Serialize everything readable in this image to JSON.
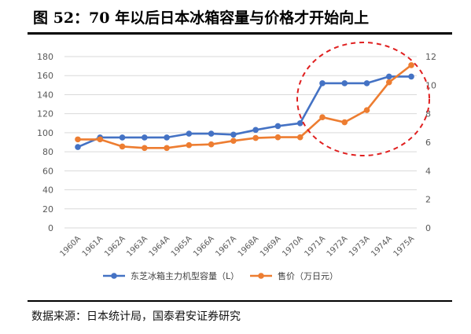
{
  "page": {
    "title": "图 52：70 年以后日本冰箱容量与价格才开始向上",
    "source": "数据来源：日本统计局，国泰君安证券研究"
  },
  "chart_data": {
    "type": "line",
    "categories": [
      "1960A",
      "1961A",
      "1962A",
      "1963A",
      "1964A",
      "1965A",
      "1966A",
      "1967A",
      "1968A",
      "1969A",
      "1970A",
      "1971A",
      "1972A",
      "1973A",
      "1974A",
      "1975A"
    ],
    "y_left": {
      "ylim": [
        0,
        180
      ],
      "ticks": [
        0,
        20,
        40,
        60,
        80,
        100,
        120,
        140,
        160,
        180
      ]
    },
    "y_right": {
      "ylim": [
        0,
        12
      ],
      "ticks": [
        0,
        2,
        4,
        6,
        8,
        10,
        12
      ]
    },
    "series": [
      {
        "name": "东芝冰箱主力机型容量（L）",
        "axis": "left",
        "color": "#4472C4",
        "values": [
          85,
          95,
          95,
          95,
          95,
          99,
          99,
          98,
          103,
          107,
          110,
          152,
          152,
          152,
          159,
          159
        ]
      },
      {
        "name": "售价（万日元）",
        "axis": "right",
        "color": "#ED7D31",
        "values": [
          6.2,
          6.2,
          5.7,
          5.6,
          5.6,
          5.8,
          5.85,
          6.1,
          6.3,
          6.35,
          6.35,
          7.75,
          7.4,
          8.25,
          10.2,
          11.4
        ]
      }
    ],
    "grid": true,
    "legend": "bottom",
    "annotation": {
      "type": "dashed-ellipse",
      "color": "#E02020"
    }
  }
}
